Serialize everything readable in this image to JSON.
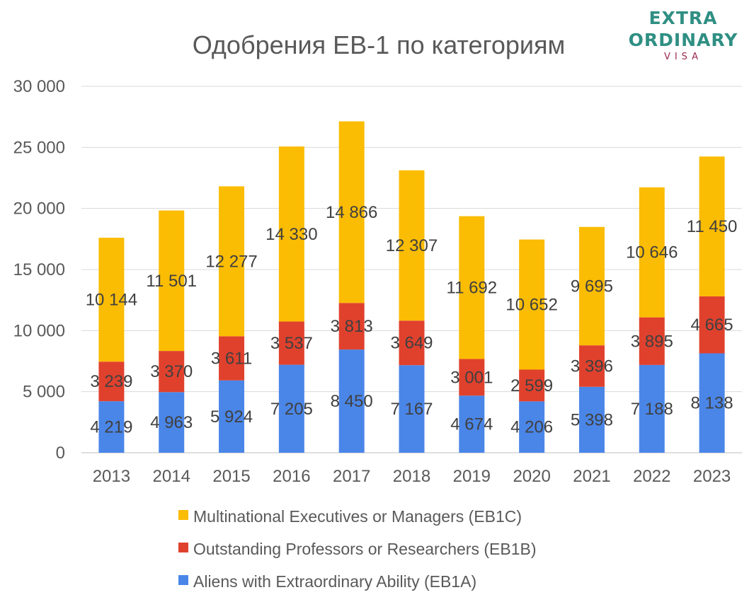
{
  "brand": {
    "line1": "EXTRA",
    "line2": "ORDINARY",
    "line3": "VISA"
  },
  "chart_data": {
    "type": "bar",
    "stacked": true,
    "title": "Одобрения EB-1 по категориям",
    "xlabel": "",
    "ylabel": "",
    "categories": [
      "2013",
      "2014",
      "2015",
      "2016",
      "2017",
      "2018",
      "2019",
      "2020",
      "2021",
      "2022",
      "2023"
    ],
    "ylim": [
      0,
      30000
    ],
    "yticks": [
      0,
      5000,
      10000,
      15000,
      20000,
      25000,
      30000
    ],
    "ytick_labels": [
      "0",
      "5 000",
      "10 000",
      "15 000",
      "20 000",
      "25 000",
      "30 000"
    ],
    "grid": true,
    "legend_position": "bottom",
    "series": [
      {
        "name": "Aliens with Extraordinary Ability (EB1A)",
        "color": "#4a86e8",
        "values": [
          4219,
          4963,
          5924,
          7205,
          8450,
          7167,
          4674,
          4206,
          5398,
          7188,
          8138
        ],
        "labels": [
          "4 219",
          "4 963",
          "5 924",
          "7 205",
          "8 450",
          "7 167",
          "4 674",
          "4 206",
          "5 398",
          "7 188",
          "8 138"
        ]
      },
      {
        "name": "Outstanding Professors or Researchers (EB1B)",
        "color": "#e0412d",
        "values": [
          3239,
          3370,
          3611,
          3537,
          3813,
          3649,
          3001,
          2599,
          3396,
          3895,
          4665
        ],
        "labels": [
          "3 239",
          "3 370",
          "3 611",
          "3 537",
          "3 813",
          "3 649",
          "3 001",
          "2 599",
          "3 396",
          "3 895",
          "4 665"
        ]
      },
      {
        "name": "Multinational Executives or Managers (EB1C)",
        "color": "#fbbc04",
        "values": [
          10144,
          11501,
          12277,
          14330,
          14866,
          12307,
          11692,
          10652,
          9695,
          10646,
          11450
        ],
        "labels": [
          "10 144",
          "11 501",
          "12 277",
          "14 330",
          "14 866",
          "12 307",
          "11 692",
          "10 652",
          "9 695",
          "10 646",
          "11 450"
        ]
      }
    ],
    "legend_order": [
      2,
      1,
      0
    ]
  }
}
